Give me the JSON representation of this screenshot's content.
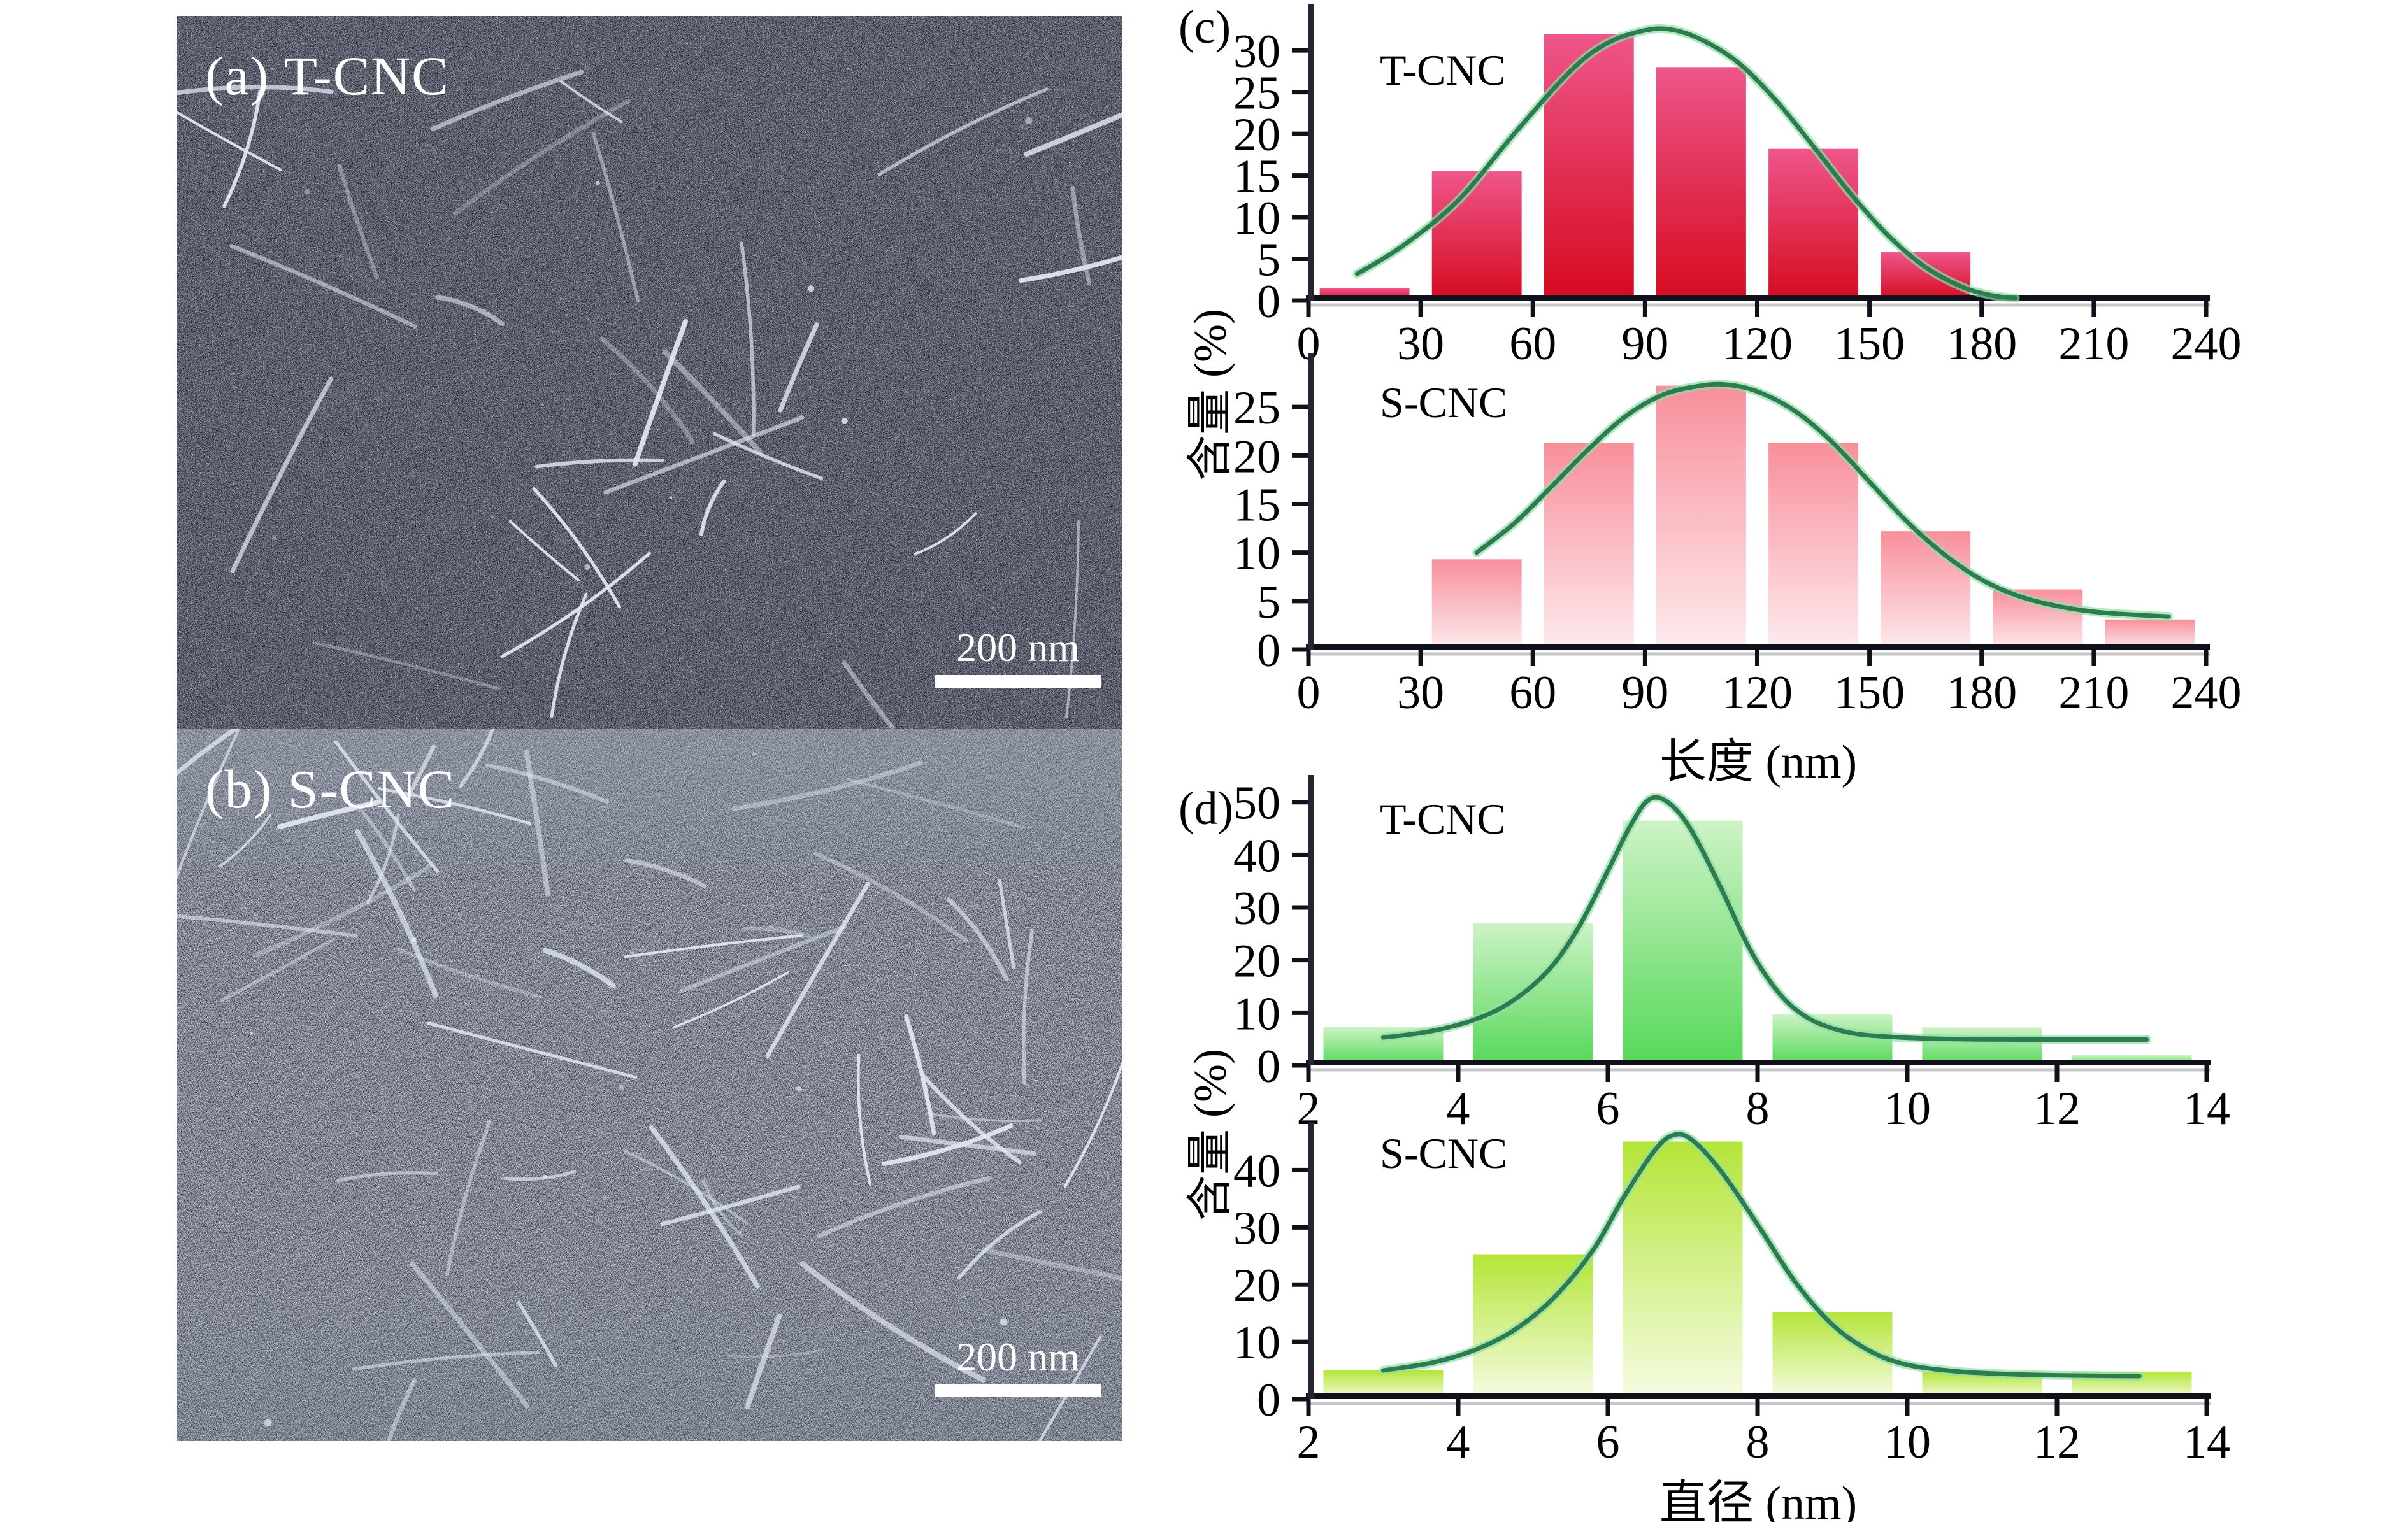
{
  "panels": {
    "a": {
      "label": "(a) T-CNC",
      "scale_text": "200 nm"
    },
    "b": {
      "label": "(b) S-CNC",
      "scale_text": "200 nm"
    },
    "c": {
      "letter": "(c)",
      "ylabel": "含量 (%)",
      "xlabel": "长度 (nm)"
    },
    "d": {
      "letter": "(d)",
      "ylabel": "含量 (%)",
      "xlabel": "直径 (nm)"
    }
  },
  "chart_data": [
    {
      "id": "chart-c1",
      "type": "bar",
      "title": "T-CNC",
      "xlabel": "长度 (nm)",
      "ylabel": "含量 (%)",
      "bin_width": 30,
      "bin_starts": [
        0,
        30,
        60,
        90,
        120,
        150
      ],
      "values": [
        1.5,
        15.5,
        32,
        28,
        18.2,
        5.8
      ],
      "xticks": [
        0,
        30,
        60,
        90,
        120,
        150,
        180,
        210,
        240
      ],
      "yticks": [
        0,
        5,
        10,
        15,
        20,
        25,
        30
      ],
      "xlim": [
        0,
        240
      ],
      "ylim": [
        0,
        34.9
      ],
      "grid": false,
      "bar_color_top": "#ee568b",
      "bar_color_bottom": "#d60a1e",
      "curve_color": "#2d7b4e",
      "curve_halo": "#8fdfa6",
      "curve": [
        [
          13,
          3.2
        ],
        [
          25,
          6.5
        ],
        [
          40,
          12
        ],
        [
          55,
          20
        ],
        [
          70,
          27.5
        ],
        [
          80,
          30.9
        ],
        [
          90,
          32.4
        ],
        [
          97,
          32.5
        ],
        [
          105,
          31.3
        ],
        [
          115,
          28.5
        ],
        [
          125,
          24
        ],
        [
          135,
          18.5
        ],
        [
          145,
          12.8
        ],
        [
          155,
          7.8
        ],
        [
          165,
          4
        ],
        [
          175,
          1.6
        ],
        [
          183,
          0.6
        ],
        [
          189,
          0.3
        ]
      ]
    },
    {
      "id": "chart-c2",
      "type": "bar",
      "title": "S-CNC",
      "xlabel": "长度 (nm)",
      "ylabel": "含量 (%)",
      "bin_width": 30,
      "bin_starts": [
        30,
        60,
        90,
        120,
        150,
        180,
        210
      ],
      "values": [
        9.3,
        21.3,
        27.2,
        21.3,
        12.2,
        6.2,
        3.1
      ],
      "xticks": [
        0,
        30,
        60,
        90,
        120,
        150,
        180,
        210,
        240
      ],
      "yticks": [
        0,
        5,
        10,
        15,
        20,
        25
      ],
      "xlim": [
        0,
        240
      ],
      "ylim": [
        0,
        30
      ],
      "grid": false,
      "bar_color_top": "#f88f9b",
      "bar_color_bottom": "#fdebee",
      "curve_color": "#2d7b4e",
      "curve_halo": "#8fdfa6",
      "curve": [
        [
          45,
          10
        ],
        [
          55,
          13
        ],
        [
          65,
          16.8
        ],
        [
          75,
          20.7
        ],
        [
          85,
          24.1
        ],
        [
          95,
          26.3
        ],
        [
          105,
          27.2
        ],
        [
          112,
          27.3
        ],
        [
          120,
          26.6
        ],
        [
          130,
          24.6
        ],
        [
          140,
          21.4
        ],
        [
          150,
          17.3
        ],
        [
          160,
          13.2
        ],
        [
          170,
          9.8
        ],
        [
          180,
          7.2
        ],
        [
          190,
          5.5
        ],
        [
          200,
          4.5
        ],
        [
          210,
          3.9
        ],
        [
          220,
          3.6
        ],
        [
          230,
          3.4
        ]
      ]
    },
    {
      "id": "chart-d1",
      "type": "bar",
      "title": "T-CNC",
      "xlabel": "直径 (nm)",
      "ylabel": "含量 (%)",
      "bin_width": 2,
      "bin_starts": [
        2,
        4,
        6,
        8,
        10,
        12
      ],
      "values": [
        7.3,
        27,
        46.5,
        9.8,
        7.2,
        2
      ],
      "xticks": [
        2,
        4,
        6,
        8,
        10,
        12,
        14
      ],
      "yticks": [
        0,
        10,
        20,
        30,
        40,
        50
      ],
      "xlim": [
        2,
        14
      ],
      "ylim": [
        0,
        54.2
      ],
      "grid": false,
      "bar_color_top": "#cdf3c6",
      "bar_color_bottom": "#55d858",
      "curve_color": "#2d7b4e",
      "curve_halo": "#8fdfa6",
      "curve": [
        [
          3,
          5.3
        ],
        [
          3.6,
          6.4
        ],
        [
          4.2,
          8.6
        ],
        [
          4.7,
          12
        ],
        [
          5.2,
          18
        ],
        [
          5.6,
          26
        ],
        [
          6,
          37
        ],
        [
          6.3,
          45.5
        ],
        [
          6.55,
          50.5
        ],
        [
          6.8,
          50
        ],
        [
          7.1,
          45
        ],
        [
          7.5,
          34
        ],
        [
          7.9,
          22
        ],
        [
          8.3,
          13.5
        ],
        [
          8.7,
          8.8
        ],
        [
          9.2,
          6.3
        ],
        [
          9.8,
          5.4
        ],
        [
          10.6,
          5
        ],
        [
          11.5,
          4.9
        ],
        [
          12.4,
          4.9
        ],
        [
          13.2,
          4.9
        ]
      ]
    },
    {
      "id": "chart-d2",
      "type": "bar",
      "title": "S-CNC",
      "xlabel": "直径 (nm)",
      "ylabel": "含量 (%)",
      "bin_width": 2,
      "bin_starts": [
        2,
        4,
        6,
        8,
        10,
        12
      ],
      "values": [
        5,
        25.3,
        45,
        15.2,
        4.8,
        4.8
      ],
      "xticks": [
        2,
        4,
        6,
        8,
        10,
        12,
        14
      ],
      "yticks": [
        0,
        10,
        20,
        30,
        40
      ],
      "xlim": [
        2,
        14
      ],
      "ylim": [
        0,
        47.5
      ],
      "grid": false,
      "bar_color_top": "#b4e538",
      "bar_color_bottom": "#f6fce4",
      "curve_color": "#2d7b4e",
      "curve_halo": "#8fdfa6",
      "curve": [
        [
          3,
          5
        ],
        [
          3.7,
          6.5
        ],
        [
          4.3,
          9
        ],
        [
          4.8,
          12.5
        ],
        [
          5.3,
          18
        ],
        [
          5.8,
          26
        ],
        [
          6.2,
          35
        ],
        [
          6.6,
          43
        ],
        [
          6.85,
          46
        ],
        [
          7.1,
          45.5
        ],
        [
          7.5,
          40
        ],
        [
          8,
          30.5
        ],
        [
          8.5,
          20.5
        ],
        [
          9,
          13
        ],
        [
          9.5,
          8.4
        ],
        [
          10,
          6
        ],
        [
          10.7,
          4.8
        ],
        [
          11.5,
          4.3
        ],
        [
          12.3,
          4.1
        ],
        [
          13.1,
          4
        ]
      ]
    }
  ]
}
